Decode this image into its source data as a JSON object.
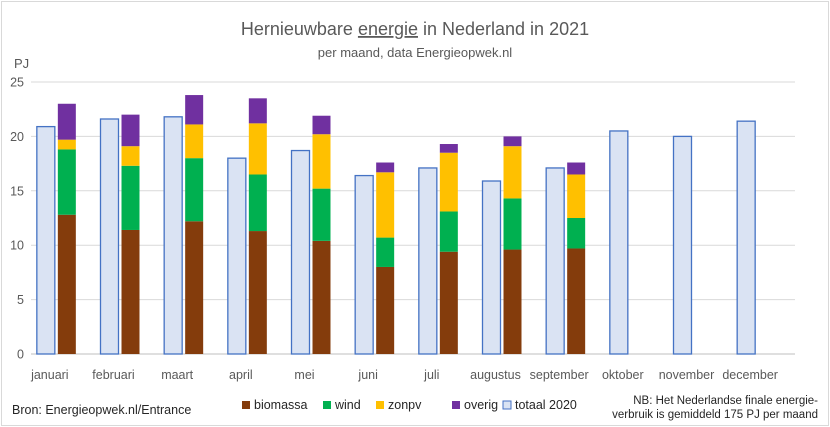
{
  "chart_data": {
    "type": "bar",
    "title_parts": [
      "Hernieuwbare ",
      "energie",
      " in Nederland in 2021"
    ],
    "subtitle": "per maand, data Energieopwek.nl",
    "ylabel": "PJ",
    "xlabel": "",
    "ylim": [
      0,
      25
    ],
    "yticks": [
      "0",
      "5",
      "10",
      "15",
      "20",
      "25"
    ],
    "grid": true,
    "categories": [
      "januari",
      "februari",
      "maart",
      "april",
      "mei",
      "juni",
      "juli",
      "augustus",
      "september",
      "oktober",
      "november",
      "december"
    ],
    "stacked_series": [
      {
        "name": "biomassa",
        "color": "#843c0c",
        "values": [
          12.8,
          11.4,
          12.2,
          11.3,
          10.4,
          8.0,
          9.4,
          9.6,
          9.7,
          null,
          null,
          null
        ]
      },
      {
        "name": "wind",
        "color": "#00b050",
        "values": [
          6.0,
          5.9,
          5.8,
          5.2,
          4.8,
          2.7,
          3.7,
          4.7,
          2.8,
          null,
          null,
          null
        ]
      },
      {
        "name": "zonpv",
        "color": "#ffc000",
        "values": [
          0.9,
          1.8,
          3.1,
          4.7,
          5.0,
          6.0,
          5.4,
          4.8,
          4.0,
          null,
          null,
          null
        ]
      },
      {
        "name": "overig",
        "color": "#7030a0",
        "values": [
          3.3,
          2.9,
          2.7,
          2.3,
          1.7,
          0.9,
          0.8,
          0.9,
          1.1,
          null,
          null,
          null
        ]
      }
    ],
    "reference_series": {
      "name": "totaal 2020",
      "fill": "#dae3f3",
      "stroke": "#4472c4",
      "values": [
        20.9,
        21.6,
        21.8,
        18.0,
        18.7,
        16.4,
        17.1,
        15.9,
        17.1,
        20.5,
        20.0,
        21.4
      ]
    },
    "legend_position": "bottom",
    "source_note": "Bron: Energieopwek.nl/Entrance",
    "footnote": [
      "NB: Het Nederlandse finale energie-",
      "verbruik is gemiddeld 175 PJ per maand"
    ]
  }
}
